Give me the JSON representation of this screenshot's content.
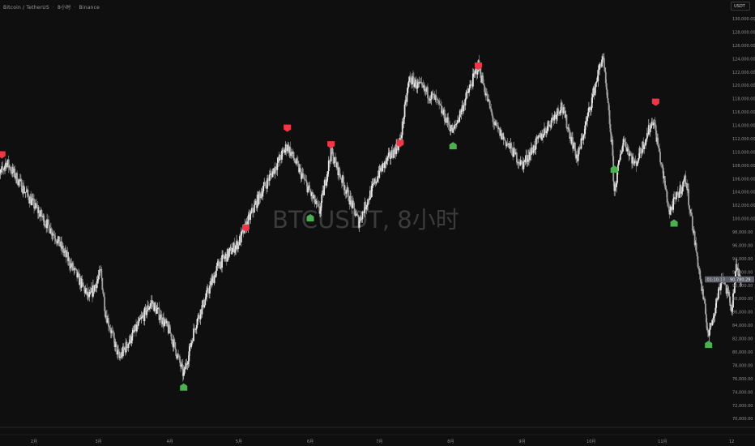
{
  "header": {
    "symbol_name": "Bitcoin / TetherUS",
    "interval": "8小时",
    "exchange": "Binance",
    "currency_button": "USDT"
  },
  "watermark": "BTCUSDT, 8小时",
  "last_price": {
    "value": "90,780.29",
    "countdown": "01:10:13",
    "color": "#5d606b"
  },
  "colors": {
    "background": "#0f0f0f",
    "candle_up": "#e6e6e6",
    "candle_down": "#a0a0a0",
    "sell_marker": "#f23645",
    "buy_marker": "#4caf50"
  },
  "chart_data": {
    "type": "candlestick",
    "x_ticks": [
      "2月",
      "3月",
      "4月",
      "5月",
      "6月",
      "7月",
      "8月",
      "9月",
      "10月",
      "11月",
      "12"
    ],
    "y_ticks": [
      "130,000.00",
      "128,000.00",
      "126,000.00",
      "124,000.00",
      "122,000.00",
      "120,000.00",
      "118,000.00",
      "116,000.00",
      "114,000.00",
      "112,000.00",
      "110,000.00",
      "108,000.00",
      "106,000.00",
      "104,000.00",
      "102,000.00",
      "100,000.00",
      "98,000.00",
      "96,000.00",
      "94,000.00",
      "92,000.00",
      "90,000.00",
      "88,000.00",
      "86,000.00",
      "84,000.00",
      "82,000.00",
      "80,000.00",
      "78,000.00",
      "76,000.00",
      "74,000.00",
      "72,000.00",
      "70,000.00"
    ],
    "ylim": [
      70000,
      130000
    ],
    "price_path": [
      [
        "01-15",
        105000
      ],
      [
        "01-20",
        108500
      ],
      [
        "02-01",
        102000
      ],
      [
        "02-10",
        97500
      ],
      [
        "02-25",
        88000
      ],
      [
        "03-02",
        92000
      ],
      [
        "03-04",
        86000
      ],
      [
        "03-10",
        79000
      ],
      [
        "03-24",
        87500
      ],
      [
        "04-01",
        83000
      ],
      [
        "04-07",
        76500
      ],
      [
        "04-12",
        84000
      ],
      [
        "04-22",
        93000
      ],
      [
        "05-01",
        96500
      ],
      [
        "05-10",
        103500
      ],
      [
        "05-22",
        111000
      ],
      [
        "06-05",
        101000
      ],
      [
        "06-10",
        110000
      ],
      [
        "06-22",
        99500
      ],
      [
        "07-01",
        107000
      ],
      [
        "07-10",
        111500
      ],
      [
        "07-14",
        121000
      ],
      [
        "07-25",
        118000
      ],
      [
        "08-02",
        113000
      ],
      [
        "08-13",
        123000
      ],
      [
        "08-20",
        114000
      ],
      [
        "09-01",
        108000
      ],
      [
        "09-18",
        117000
      ],
      [
        "09-25",
        109000
      ],
      [
        "10-06",
        124500
      ],
      [
        "10-10",
        111000
      ],
      [
        "10-11",
        104000
      ],
      [
        "10-15",
        112000
      ],
      [
        "10-20",
        108000
      ],
      [
        "10-28",
        115000
      ],
      [
        "11-04",
        101000
      ],
      [
        "11-11",
        106000
      ],
      [
        "11-21",
        82500
      ],
      [
        "11-27",
        91500
      ],
      [
        "12-01",
        86500
      ],
      [
        "12-03",
        92500
      ],
      [
        "12-05",
        90780
      ]
    ],
    "signals": [
      {
        "type": "sell",
        "date": "01-18",
        "price": 109500
      },
      {
        "type": "sell",
        "date": "05-04",
        "price": 98500
      },
      {
        "type": "sell",
        "date": "05-22",
        "price": 113500
      },
      {
        "type": "sell",
        "date": "06-10",
        "price": 111000
      },
      {
        "type": "sell",
        "date": "07-10",
        "price": 111200
      },
      {
        "type": "sell",
        "date": "08-13",
        "price": 122800
      },
      {
        "type": "sell",
        "date": "10-29",
        "price": 117400
      },
      {
        "type": "buy",
        "date": "04-07",
        "price": 74800
      },
      {
        "type": "buy",
        "date": "06-01",
        "price": 100200
      },
      {
        "type": "buy",
        "date": "08-02",
        "price": 111000
      },
      {
        "type": "buy",
        "date": "10-11",
        "price": 107500
      },
      {
        "type": "buy",
        "date": "11-06",
        "price": 99400
      },
      {
        "type": "buy",
        "date": "11-21",
        "price": 81200
      }
    ]
  }
}
